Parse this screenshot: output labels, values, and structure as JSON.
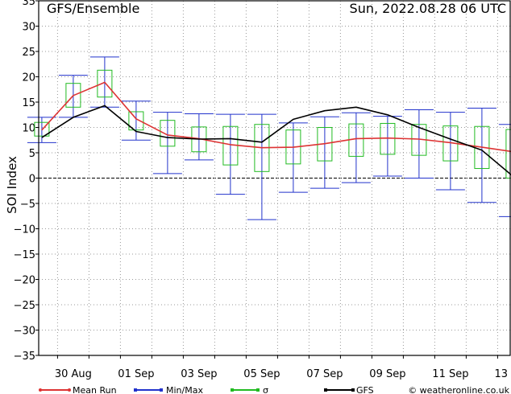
{
  "header": {
    "title": "GFS/Ensemble",
    "datetime": "Sun, 2022.08.28   06 UTC"
  },
  "legend": {
    "items": [
      {
        "label": "Mean Run",
        "color": "#dd3333",
        "marker": "round"
      },
      {
        "label": "Min/Max",
        "color": "#2233cc",
        "marker": "square"
      },
      {
        "label": "σ",
        "color": "#22bb22",
        "marker": "square"
      },
      {
        "label": "GFS",
        "color": "#000000",
        "marker": "square"
      }
    ],
    "credit": "© weatheronline.co.uk"
  },
  "chart_data": {
    "type": "line",
    "title": "GFS/Ensemble",
    "ylabel": "SOI Index",
    "xlabel": "",
    "ylim": [
      -35,
      35
    ],
    "yticks": [
      -35,
      -30,
      -25,
      -20,
      -15,
      -10,
      -5,
      0,
      5,
      10,
      15,
      20,
      25,
      30,
      35
    ],
    "xlim": [
      -0.6,
      14.4
    ],
    "xtick_labels": [
      {
        "day": 1,
        "label": "30 Aug"
      },
      {
        "day": 3,
        "label": "01 Sep"
      },
      {
        "day": 5,
        "label": "03 Sep"
      },
      {
        "day": 7,
        "label": "05 Sep"
      },
      {
        "day": 9,
        "label": "07 Sep"
      },
      {
        "day": 11,
        "label": "09 Sep"
      },
      {
        "day": 13,
        "label": "11 Sep"
      },
      {
        "day": 15,
        "label": "13"
      }
    ],
    "grid": true,
    "zero_line": true,
    "x": [
      -0.5,
      0.5,
      1.5,
      2.5,
      3.5,
      4.5,
      5.5,
      6.5,
      7.5,
      8.5,
      9.5,
      10.5,
      11.5,
      12.5,
      13.5,
      14.5
    ],
    "series": [
      {
        "name": "Mean Run",
        "color": "#dd3333",
        "values": [
          9.5,
          16.3,
          18.9,
          11.7,
          8.5,
          7.8,
          6.6,
          6.0,
          6.1,
          6.8,
          7.8,
          7.9,
          7.7,
          7.0,
          6.1,
          5.2
        ]
      },
      {
        "name": "GFS",
        "color": "#000000",
        "values": [
          8.0,
          12.0,
          14.3,
          9.2,
          8.0,
          7.7,
          7.8,
          7.1,
          11.6,
          13.3,
          14.0,
          12.5,
          10.0,
          7.7,
          5.5,
          0.3
        ]
      },
      {
        "name": "Min/Max",
        "color": "#2233cc",
        "kind": "range",
        "min": [
          7.0,
          12.0,
          14.0,
          7.5,
          0.9,
          3.6,
          -3.2,
          -8.2,
          -2.8,
          -2.0,
          -0.9,
          0.4,
          0.0,
          -2.3,
          -4.8,
          -7.6
        ],
        "max": [
          12.0,
          20.3,
          23.9,
          15.2,
          13.0,
          12.7,
          12.6,
          12.6,
          10.9,
          12.1,
          12.9,
          12.2,
          13.5,
          13.0,
          13.8,
          10.6
        ]
      },
      {
        "name": "σ",
        "color": "#22bb22",
        "kind": "box",
        "low": [
          8.3,
          14.0,
          16.0,
          9.5,
          6.3,
          5.2,
          2.6,
          1.3,
          2.8,
          3.4,
          4.3,
          4.7,
          4.5,
          3.4,
          1.9,
          0.0
        ],
        "high": [
          11.0,
          18.7,
          21.3,
          13.1,
          11.4,
          10.1,
          10.2,
          10.6,
          9.5,
          10.0,
          10.7,
          10.8,
          10.6,
          10.3,
          10.2,
          9.6
        ]
      }
    ]
  }
}
